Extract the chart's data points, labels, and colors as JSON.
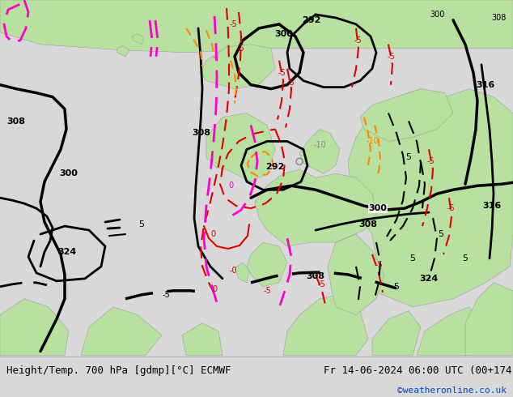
{
  "title_left": "Height/Temp. 700 hPa [gdmp][°C] ECMWF",
  "title_right": "Fr 14-06-2024 06:00 UTC (00+174)",
  "credit": "©weatheronline.co.uk",
  "map_bg": "#c8c8c8",
  "land_green": "#b8e0a0",
  "footer_bg": "#d8d8d8",
  "black": "#000000",
  "red": "#e00000",
  "pink": "#ff00cc",
  "orange": "#ff8800",
  "gray_label": "#888888"
}
